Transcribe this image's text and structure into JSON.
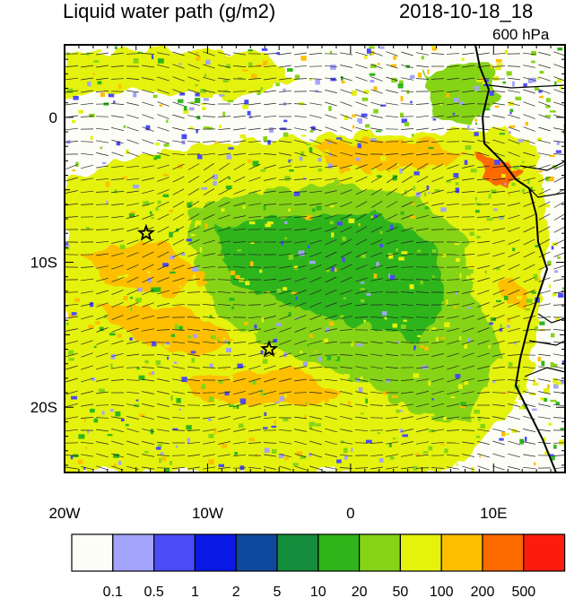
{
  "header": {
    "field_title": "Liquid water path (g/m2)",
    "datetime": "2018-10-18_18",
    "level": "600 hPa"
  },
  "map": {
    "lon_range": [
      -20,
      15
    ],
    "lat_range": [
      -24.5,
      5
    ],
    "lon_ticks": [
      {
        "value": -20,
        "label": "20W"
      },
      {
        "value": -10,
        "label": "10W"
      },
      {
        "value": 0,
        "label": "0"
      },
      {
        "value": 10,
        "label": "10E"
      }
    ],
    "lat_ticks": [
      {
        "value": 0,
        "label": "0"
      },
      {
        "value": -10,
        "label": "10S"
      },
      {
        "value": -20,
        "label": "20S"
      }
    ],
    "markers": [
      {
        "name": "star-1",
        "lon": -14.3,
        "lat": -8.0
      },
      {
        "name": "star-2",
        "lon": -5.7,
        "lat": -16.0
      }
    ],
    "wind_vectors": "shown"
  },
  "colorbar": {
    "colors": [
      "#fdfdf7",
      "#a3a3fb",
      "#4b4bf7",
      "#0a18e6",
      "#0d4a9e",
      "#148e3c",
      "#2fb51a",
      "#86d415",
      "#e4f20c",
      "#fdbf00",
      "#fd6a00",
      "#fd1b0d"
    ],
    "labels": [
      "0.1",
      "0.5",
      "1",
      "2",
      "5",
      "10",
      "20",
      "50",
      "100",
      "200",
      "500"
    ]
  }
}
